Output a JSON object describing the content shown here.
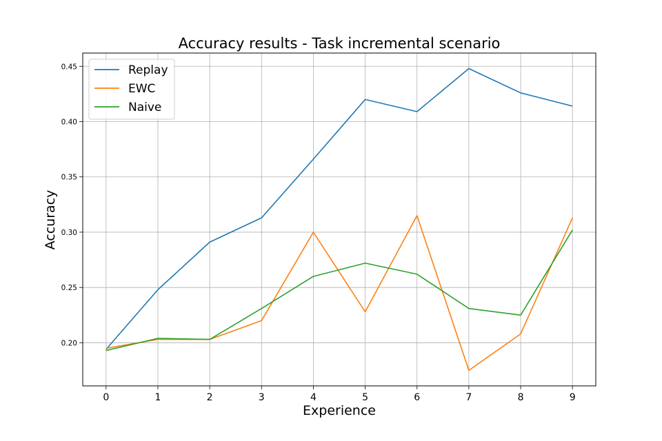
{
  "chart_data": {
    "type": "line",
    "title": "Accuracy results - Task incremental scenario",
    "xlabel": "Experience",
    "ylabel": "Accuracy",
    "x": [
      0,
      1,
      2,
      3,
      4,
      5,
      6,
      7,
      8,
      9
    ],
    "xlim": [
      -0.45,
      9.45
    ],
    "ylim": [
      0.161,
      0.462
    ],
    "yticks": [
      "0.20",
      "0.25",
      "0.30",
      "0.35",
      "0.40",
      "0.45"
    ],
    "xticks": [
      "0",
      "1",
      "2",
      "3",
      "4",
      "5",
      "6",
      "7",
      "8",
      "9"
    ],
    "grid": true,
    "legend_position": "top-left",
    "series": [
      {
        "name": "Replay",
        "color": "#1f77b4",
        "values": [
          0.194,
          0.248,
          0.291,
          0.313,
          0.366,
          0.42,
          0.409,
          0.448,
          0.426,
          0.414
        ]
      },
      {
        "name": "EWC",
        "color": "#ff7f0e",
        "values": [
          0.195,
          0.203,
          0.203,
          0.22,
          0.3,
          0.228,
          0.315,
          0.175,
          0.208,
          0.313
        ]
      },
      {
        "name": "Naive",
        "color": "#2ca02c",
        "values": [
          0.193,
          0.204,
          0.203,
          0.231,
          0.26,
          0.272,
          0.262,
          0.231,
          0.225,
          0.302
        ]
      }
    ]
  }
}
